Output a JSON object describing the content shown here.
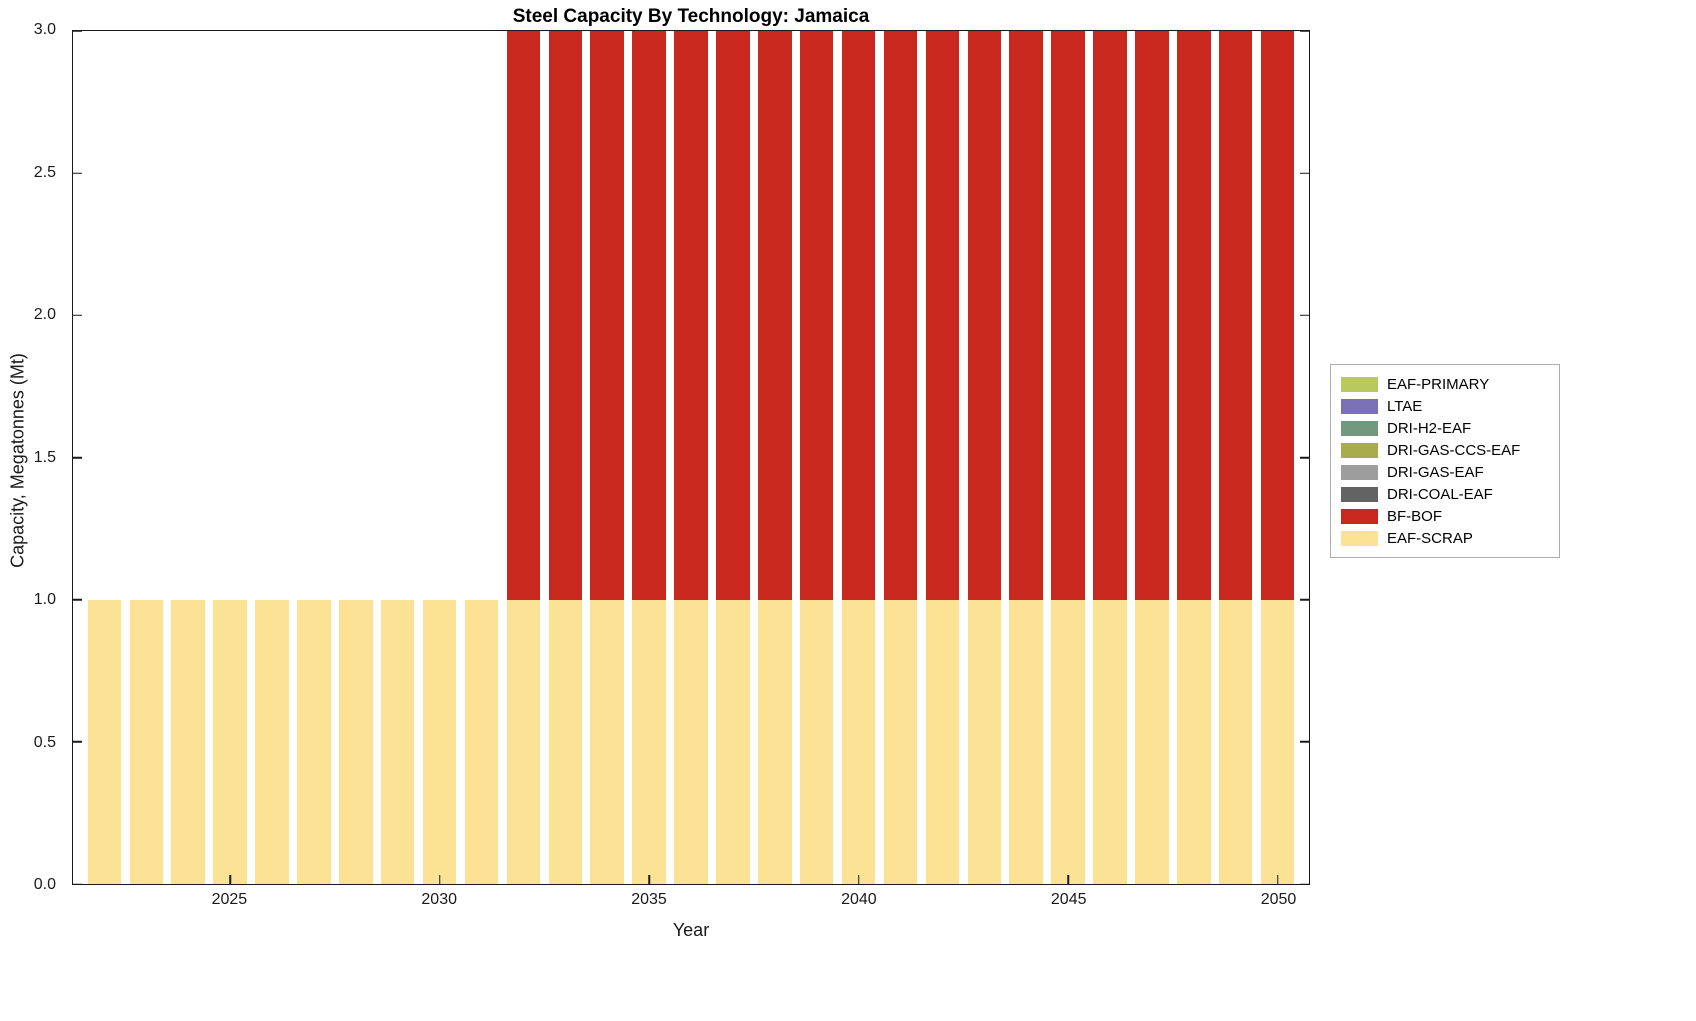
{
  "chart_data": {
    "type": "bar",
    "stacked": true,
    "title": "Steel Capacity By Technology: Jamaica",
    "xlabel": "Year",
    "ylabel": "Capacity, Megatonnes (Mt)",
    "xlim": [
      2021.25,
      2050.75
    ],
    "ylim": [
      0,
      3
    ],
    "bar_width_years": 0.8,
    "grid": false,
    "legend_position": "right-outside",
    "yticks": [
      0,
      0.5,
      1,
      1.5,
      2,
      2.5,
      3
    ],
    "ytick_labels": [
      "0.0",
      "0.5",
      "1.0",
      "1.5",
      "2.0",
      "2.5",
      "3.0"
    ],
    "xticks": [
      2025,
      2030,
      2035,
      2040,
      2045,
      2050
    ],
    "xtick_labels": [
      "2025",
      "2030",
      "2035",
      "2040",
      "2045",
      "2050"
    ],
    "categories": [
      2022,
      2023,
      2024,
      2025,
      2026,
      2027,
      2028,
      2029,
      2030,
      2031,
      2032,
      2033,
      2034,
      2035,
      2036,
      2037,
      2038,
      2039,
      2040,
      2041,
      2042,
      2043,
      2044,
      2045,
      2046,
      2047,
      2048,
      2049,
      2050
    ],
    "series": [
      {
        "name": "EAF-SCRAP",
        "color": "#FBE294",
        "values": [
          1,
          1,
          1,
          1,
          1,
          1,
          1,
          1,
          1,
          1,
          1,
          1,
          1,
          1,
          1,
          1,
          1,
          1,
          1,
          1,
          1,
          1,
          1,
          1,
          1,
          1,
          1,
          1,
          1
        ]
      },
      {
        "name": "BF-BOF",
        "color": "#C8281E",
        "values": [
          0,
          0,
          0,
          0,
          0,
          0,
          0,
          0,
          0,
          0,
          2,
          2,
          2,
          2,
          2,
          2,
          2,
          2,
          2,
          2,
          2,
          2,
          2,
          2,
          2,
          2,
          2,
          2,
          2
        ]
      }
    ],
    "legend": [
      {
        "label": "EAF-PRIMARY",
        "color": "#B9C960"
      },
      {
        "label": "LTAE",
        "color": "#7A70B5"
      },
      {
        "label": "DRI-H2-EAF",
        "color": "#71997D"
      },
      {
        "label": "DRI-GAS-CCS-EAF",
        "color": "#A9AC4B"
      },
      {
        "label": "DRI-GAS-EAF",
        "color": "#9D9D9D"
      },
      {
        "label": "DRI-COAL-EAF",
        "color": "#636363"
      },
      {
        "label": "BF-BOF",
        "color": "#C8281E"
      },
      {
        "label": "EAF-SCRAP",
        "color": "#FBE294"
      }
    ]
  }
}
